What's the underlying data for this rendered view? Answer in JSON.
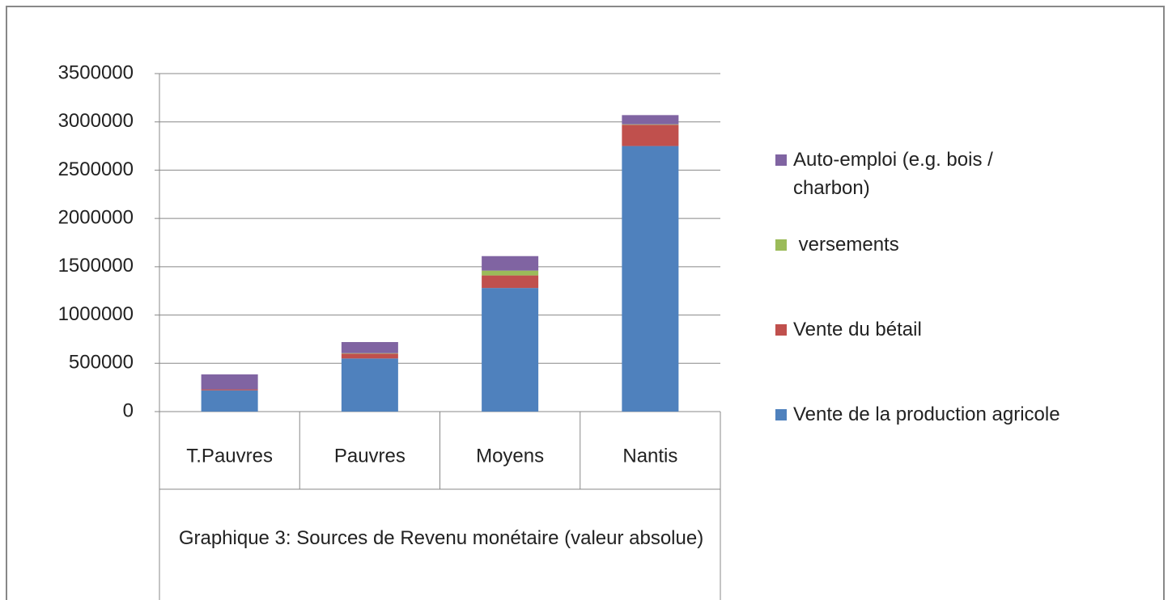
{
  "chart_data": {
    "type": "stacked_bar",
    "title": "Graphique 3: Sources de Revenu monétaire (valeur absolue)",
    "categories": [
      "T.Pauvres",
      "Pauvres",
      "Moyens",
      "Nantis"
    ],
    "series": [
      {
        "name": "Vente de la production agricole",
        "color": "#4f81bd",
        "values": [
          220000,
          550000,
          1280000,
          2750000
        ]
      },
      {
        "name": "Vente du bétail",
        "color": "#c0504d",
        "values": [
          10000,
          50000,
          130000,
          220000
        ]
      },
      {
        "name": " versements",
        "color": "#9bbb59",
        "values": [
          0,
          5000,
          50000,
          5000
        ]
      },
      {
        "name": "Auto-emploi (e.g. bois / charbon)",
        "color": "#8064a2",
        "values": [
          155000,
          115000,
          150000,
          95000
        ]
      }
    ],
    "ylim": [
      0,
      3500000
    ],
    "yticks": [
      0,
      500000,
      1000000,
      1500000,
      2000000,
      2500000,
      3000000,
      3500000
    ],
    "grid": true,
    "legend": "right"
  }
}
